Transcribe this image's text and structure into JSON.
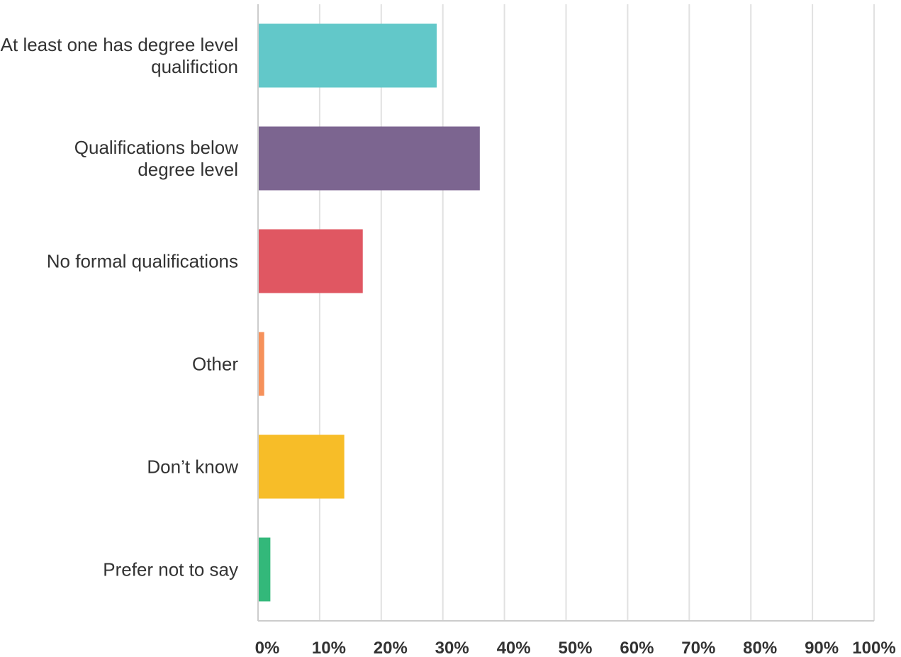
{
  "chart_data": {
    "type": "bar",
    "orientation": "horizontal",
    "categories": [
      [
        "At least one has degree level",
        "qualifiction"
      ],
      [
        "Qualifications below",
        "degree level"
      ],
      [
        "No formal qualifications"
      ],
      [
        "Other"
      ],
      [
        "Don’t know"
      ],
      [
        "Prefer not to say"
      ]
    ],
    "values": [
      29,
      36,
      17,
      1,
      14,
      2
    ],
    "colors": [
      "#62c8c9",
      "#7c6590",
      "#e05762",
      "#f6915b",
      "#f7bd28",
      "#33b87a"
    ],
    "xlim": [
      0,
      100
    ],
    "xticks": [
      0,
      10,
      20,
      30,
      40,
      50,
      60,
      70,
      80,
      90,
      100
    ],
    "xtick_labels": [
      "0%",
      "10%",
      "20%",
      "30%",
      "40%",
      "50%",
      "60%",
      "70%",
      "80%",
      "90%",
      "100%"
    ],
    "grid": true,
    "gridColor": "#e1e1e1",
    "axisColor": "#cccccc",
    "title": "",
    "xlabel": "",
    "ylabel": ""
  }
}
